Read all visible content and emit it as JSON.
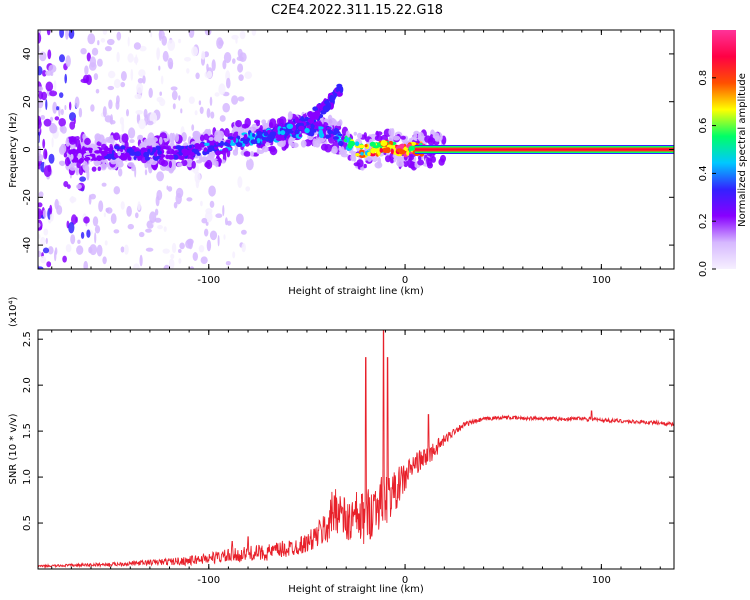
{
  "title": "C2E4.2022.311.15.22.G18",
  "chart_data": [
    {
      "type": "heatmap",
      "xlabel": "Height of straight line (km)",
      "ylabel": "Frequency (Hz)",
      "xlim": [
        -187,
        137
      ],
      "ylim": [
        -50,
        50
      ],
      "xticks": [
        -100,
        0,
        100
      ],
      "yticks": [
        -40,
        -20,
        0,
        20,
        40
      ],
      "colorbar": {
        "label": "Normalized spectral amplitude",
        "range": [
          0.0,
          1.0
        ],
        "ticks": [
          "0.0",
          "0.2",
          "0.4",
          "0.6",
          "0.8"
        ],
        "colormap": [
          "#f6f0ff",
          "#d6b8ff",
          "#8800ff",
          "#3322ff",
          "#00c8ff",
          "#00ff66",
          "#ffff00",
          "#ff5000",
          "#ff0044",
          "#ff3399"
        ]
      },
      "ridge": {
        "x": [
          -170,
          -150,
          -130,
          -110,
          -95,
          -85,
          -75,
          -65,
          -55,
          -45,
          -38,
          -30,
          -22,
          -15,
          -8,
          0,
          10,
          30,
          60,
          100,
          137
        ],
        "y": [
          -3,
          -1,
          -2,
          -1,
          1,
          4,
          5,
          6,
          8,
          9,
          7,
          3,
          -1,
          0,
          1,
          0,
          0,
          0,
          0,
          0,
          0
        ],
        "amplitude": [
          0.25,
          0.3,
          0.35,
          0.35,
          0.4,
          0.45,
          0.45,
          0.45,
          0.4,
          0.4,
          0.4,
          0.5,
          0.7,
          0.8,
          0.85,
          0.95,
          0.95,
          0.95,
          0.95,
          0.95,
          0.95
        ]
      },
      "branch": {
        "x": [
          -75,
          -60,
          -50,
          -42,
          -36,
          -32
        ],
        "y": [
          5,
          8,
          12,
          17,
          22,
          27
        ]
      }
    },
    {
      "type": "line",
      "xlabel": "Height of straight line (km)",
      "ylabel": "SNR (10 * v/v)",
      "y_multiplier": "(x10⁴)",
      "xlim": [
        -187,
        137
      ],
      "ylim": [
        0,
        2.6
      ],
      "xticks": [
        -100,
        0,
        100
      ],
      "yticks": [
        0.5,
        1.0,
        1.5,
        2.0,
        2.5
      ],
      "color": "#e8202a",
      "series": [
        {
          "x": [
            -187,
            -170,
            -150,
            -130,
            -110,
            -100,
            -90,
            -85,
            -80,
            -70,
            -60,
            -50,
            -45,
            -40,
            -35,
            -30,
            -25,
            -20,
            -15,
            -10,
            -5,
            0,
            5,
            10,
            15,
            20,
            25,
            30,
            40,
            50,
            60,
            70,
            80,
            90,
            95,
            100,
            110,
            120,
            130,
            137
          ],
          "y": [
            0.03,
            0.04,
            0.05,
            0.07,
            0.09,
            0.12,
            0.14,
            0.15,
            0.17,
            0.18,
            0.22,
            0.28,
            0.36,
            0.45,
            0.7,
            0.5,
            0.55,
            0.55,
            0.7,
            0.75,
            0.85,
            1.0,
            1.15,
            1.2,
            1.3,
            1.4,
            1.5,
            1.57,
            1.63,
            1.65,
            1.64,
            1.64,
            1.63,
            1.64,
            1.63,
            1.62,
            1.61,
            1.6,
            1.59,
            1.57
          ],
          "noise": [
            0.01,
            0.015,
            0.02,
            0.03,
            0.05,
            0.06,
            0.08,
            0.08,
            0.08,
            0.09,
            0.1,
            0.1,
            0.15,
            0.2,
            0.3,
            0.25,
            0.3,
            0.3,
            0.3,
            0.28,
            0.22,
            0.18,
            0.12,
            0.12,
            0.1,
            0.06,
            0.04,
            0.03,
            0.02,
            0.02,
            0.02,
            0.02,
            0.02,
            0.02,
            0.03,
            0.02,
            0.02,
            0.02,
            0.02,
            0.02
          ]
        }
      ],
      "peaks": [
        {
          "x": -88,
          "y": 0.3
        },
        {
          "x": -80,
          "y": 0.35
        },
        {
          "x": -20,
          "y": 2.3
        },
        {
          "x": -11,
          "y": 2.6
        },
        {
          "x": -9,
          "y": 2.3
        },
        {
          "x": 12,
          "y": 1.68
        },
        {
          "x": 95,
          "y": 1.72
        }
      ]
    }
  ]
}
